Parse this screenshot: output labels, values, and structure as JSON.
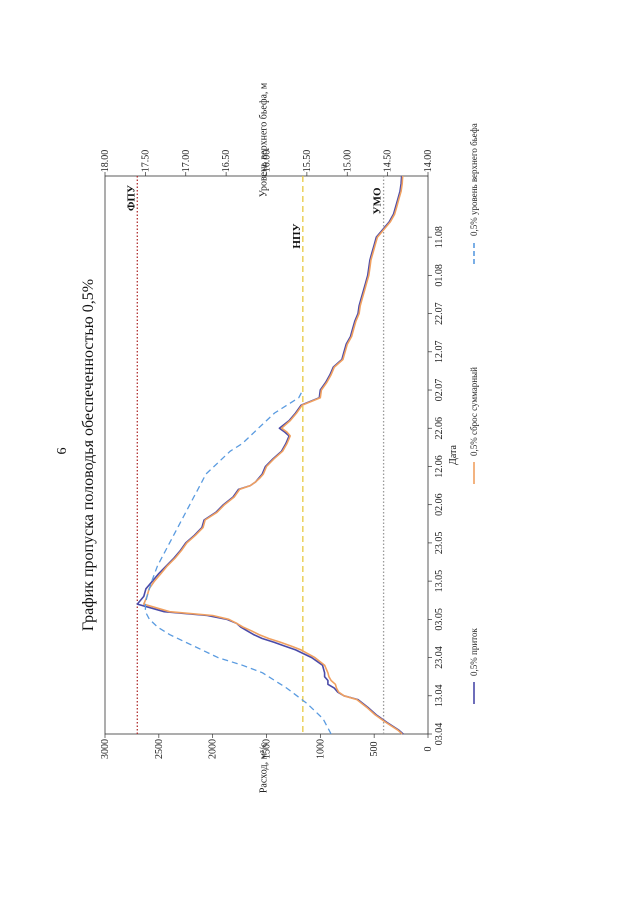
{
  "page_number": "6",
  "chart_data": {
    "type": "line",
    "title": "График пропуска половодья обеспеченностью 0,5%",
    "xlabel": "Дата",
    "ylabel": "Расход, м³/с",
    "y2label": "Уровень верхнего бьефа, м",
    "x_ticks": [
      "03.04",
      "13.04",
      "23.04",
      "03.05",
      "13.05",
      "23.05",
      "02.06",
      "12.06",
      "22.06",
      "02.07",
      "12.07",
      "22.07",
      "01.08",
      "11.08"
    ],
    "ylim": [
      0,
      3000
    ],
    "y_ticks": [
      0,
      500,
      1000,
      1500,
      2000,
      2500,
      3000
    ],
    "y_tick_labels": [
      "0",
      "500",
      "1000",
      "1500",
      "2000",
      "2500",
      "3000"
    ],
    "y2lim": [
      14.0,
      18.0
    ],
    "y2_ticks": [
      "14.00",
      "14.50",
      "15.00",
      "15.50",
      "16.00",
      "16.50",
      "17.00",
      "17.50",
      "18.00"
    ],
    "legend_position": "bottom",
    "grid": false,
    "series": [
      {
        "name": "0,5% приток",
        "color": "#4a4aa8",
        "axis": "left",
        "style": "solid",
        "x": [
          0,
          1,
          3,
          5,
          7,
          9,
          10,
          11,
          12,
          13,
          14,
          15,
          16,
          18,
          20,
          22,
          23,
          24,
          25,
          26,
          27,
          28,
          29,
          30,
          31,
          32,
          34,
          36,
          38,
          40,
          42,
          44,
          46,
          48,
          50,
          52,
          54,
          56,
          58,
          60,
          62,
          64,
          65,
          66,
          67,
          68,
          70,
          72,
          74,
          76,
          78,
          79,
          80,
          82,
          84,
          86,
          88,
          90,
          92,
          94,
          96,
          98,
          100,
          102,
          104,
          106,
          108,
          110,
          112,
          114,
          116,
          118,
          120,
          122,
          124,
          126,
          128,
          130,
          132,
          134,
          136,
          138,
          140,
          142,
          144,
          146
        ],
        "y": [
          230,
          270,
          380,
          480,
          560,
          650,
          780,
          840,
          870,
          930,
          930,
          960,
          960,
          980,
          1080,
          1230,
          1330,
          1430,
          1540,
          1620,
          1680,
          1740,
          1780,
          1870,
          2050,
          2450,
          2700,
          2640,
          2620,
          2560,
          2500,
          2430,
          2360,
          2300,
          2250,
          2170,
          2100,
          2080,
          1970,
          1900,
          1810,
          1760,
          1650,
          1600,
          1570,
          1540,
          1510,
          1440,
          1360,
          1320,
          1290,
          1330,
          1380,
          1290,
          1230,
          1180,
          1010,
          1000,
          950,
          910,
          880,
          800,
          780,
          760,
          720,
          700,
          680,
          650,
          640,
          620,
          600,
          580,
          560,
          550,
          540,
          520,
          500,
          480,
          420,
          360,
          320,
          300,
          280,
          260,
          250,
          245
        ],
        "values_note_hidden": ""
      },
      {
        "name": "0,5% сброс суммарный",
        "color": "#f0a060",
        "axis": "left",
        "style": "solid",
        "x": [
          0,
          1,
          3,
          5,
          7,
          9,
          10,
          11,
          12,
          13,
          14,
          15,
          16,
          18,
          20,
          22,
          23,
          24,
          25,
          26,
          27,
          28,
          29,
          30,
          31,
          32,
          34,
          36,
          38,
          40,
          42,
          44,
          46,
          48,
          50,
          52,
          54,
          56,
          58,
          60,
          62,
          64,
          65,
          66,
          67,
          68,
          70,
          72,
          74,
          76,
          78,
          79,
          80,
          82,
          84,
          86,
          88,
          90,
          92,
          94,
          96,
          98,
          100,
          102,
          104,
          106,
          108,
          110,
          112,
          114,
          116,
          118,
          120,
          122,
          124,
          126,
          128,
          130,
          132,
          134,
          136,
          138,
          140,
          142,
          144,
          146
        ],
        "y": [
          240,
          280,
          390,
          490,
          570,
          660,
          780,
          830,
          850,
          860,
          900,
          920,
          930,
          960,
          1050,
          1180,
          1270,
          1370,
          1480,
          1570,
          1640,
          1720,
          1780,
          1850,
          2000,
          2400,
          2640,
          2610,
          2590,
          2540,
          2480,
          2420,
          2350,
          2290,
          2240,
          2160,
          2090,
          2070,
          1960,
          1890,
          1800,
          1750,
          1650,
          1600,
          1560,
          1530,
          1500,
          1430,
          1350,
          1310,
          1280,
          1310,
          1360,
          1280,
          1220,
          1170,
          1000,
          990,
          940,
          900,
          870,
          790,
          770,
          750,
          710,
          690,
          670,
          640,
          630,
          610,
          590,
          570,
          550,
          540,
          530,
          510,
          490,
          470,
          410,
          350,
          310,
          290,
          270,
          250,
          240,
          235
        ],
        "values_note_hidden": ""
      },
      {
        "name": "0,5% уровень верхнего бьефа",
        "color": "#5a9be0",
        "axis": "right",
        "style": "dashed",
        "x": [
          0,
          4,
          8,
          12,
          16,
          18,
          20,
          22,
          24,
          26,
          28,
          30,
          32,
          34,
          36,
          38,
          40,
          44,
          48,
          52,
          56,
          60,
          62,
          64,
          66,
          68,
          70,
          72,
          74,
          76,
          78,
          80,
          82,
          84,
          86,
          88,
          90
        ],
        "y": [
          15.2,
          15.3,
          15.5,
          15.75,
          16.05,
          16.3,
          16.6,
          16.8,
          17.0,
          17.2,
          17.35,
          17.45,
          17.5,
          17.5,
          17.48,
          17.45,
          17.42,
          17.35,
          17.25,
          17.15,
          17.05,
          16.95,
          16.9,
          16.85,
          16.8,
          16.75,
          16.65,
          16.55,
          16.45,
          16.3,
          16.2,
          16.1,
          16.0,
          15.9,
          15.75,
          15.6,
          15.55
        ],
        "values_note_hidden": ""
      }
    ],
    "reference_lines": [
      {
        "label": "ФПУ",
        "axis": "right",
        "value": 17.6,
        "color": "#b03030",
        "style": "dotted"
      },
      {
        "label": "НПУ",
        "axis": "right",
        "value": 15.55,
        "color": "#e8c840",
        "style": "dashed"
      },
      {
        "label": "УМО",
        "axis": "right",
        "value": 14.55,
        "color": "#9a9a9a",
        "style": "dotted"
      }
    ]
  }
}
